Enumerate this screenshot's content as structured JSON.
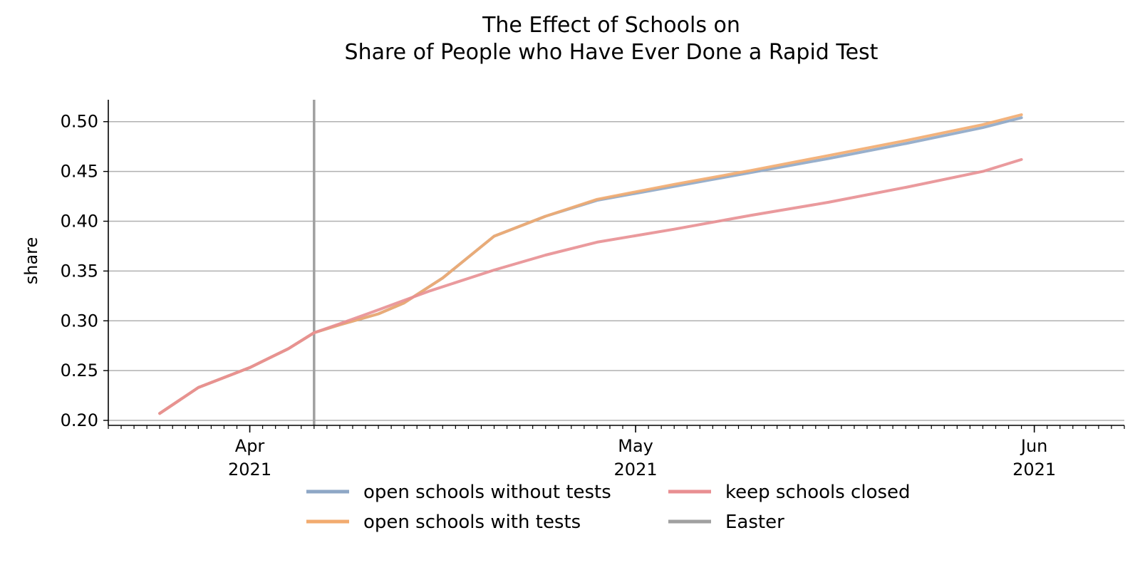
{
  "chart_data": {
    "type": "line",
    "title_lines": [
      "The Effect of Schools on",
      "Share of People who Have Ever Done a Rapid Test"
    ],
    "xlabel": "",
    "ylabel": "share",
    "xlim": [
      "2021-03-21",
      "2021-06-08"
    ],
    "ylim": [
      0.195,
      0.522
    ],
    "grid": "horizontal",
    "legend_placement": "bottom-center",
    "y_ticks": [
      0.2,
      0.25,
      0.3,
      0.35,
      0.4,
      0.45,
      0.5
    ],
    "y_tick_labels": [
      "0.20",
      "0.25",
      "0.30",
      "0.35",
      "0.40",
      "0.45",
      "0.50"
    ],
    "x_ticks": [
      {
        "date": "2021-04-01",
        "label1": "Apr",
        "label2": "2021"
      },
      {
        "date": "2021-05-01",
        "label1": "May",
        "label2": "2021"
      },
      {
        "date": "2021-06-01",
        "label1": "Jun",
        "label2": "2021"
      }
    ],
    "vline": {
      "date": "2021-04-06",
      "name": "Easter",
      "color": "#a0a0a0"
    },
    "series": [
      {
        "name": "open schools without tests",
        "color": "#8ea7c6",
        "points": [
          [
            "2021-03-25",
            0.207
          ],
          [
            "2021-03-28",
            0.233
          ],
          [
            "2021-04-01",
            0.253
          ],
          [
            "2021-04-04",
            0.272
          ],
          [
            "2021-04-06",
            0.288
          ],
          [
            "2021-04-08",
            0.296
          ],
          [
            "2021-04-11",
            0.307
          ],
          [
            "2021-04-13",
            0.318
          ],
          [
            "2021-04-16",
            0.343
          ],
          [
            "2021-04-20",
            0.385
          ],
          [
            "2021-04-24",
            0.405
          ],
          [
            "2021-04-28",
            0.421
          ],
          [
            "2021-05-04",
            0.435
          ],
          [
            "2021-05-10",
            0.449
          ],
          [
            "2021-05-16",
            0.463
          ],
          [
            "2021-05-22",
            0.478
          ],
          [
            "2021-05-28",
            0.494
          ],
          [
            "2021-05-31",
            0.504
          ]
        ]
      },
      {
        "name": "open schools with tests",
        "color": "#f2ab6f",
        "points": [
          [
            "2021-03-25",
            0.207
          ],
          [
            "2021-03-28",
            0.233
          ],
          [
            "2021-04-01",
            0.253
          ],
          [
            "2021-04-04",
            0.272
          ],
          [
            "2021-04-06",
            0.288
          ],
          [
            "2021-04-08",
            0.296
          ],
          [
            "2021-04-11",
            0.307
          ],
          [
            "2021-04-13",
            0.318
          ],
          [
            "2021-04-16",
            0.343
          ],
          [
            "2021-04-20",
            0.385
          ],
          [
            "2021-04-24",
            0.405
          ],
          [
            "2021-04-28",
            0.422
          ],
          [
            "2021-05-04",
            0.437
          ],
          [
            "2021-05-10",
            0.451
          ],
          [
            "2021-05-16",
            0.466
          ],
          [
            "2021-05-22",
            0.481
          ],
          [
            "2021-05-28",
            0.497
          ],
          [
            "2021-05-31",
            0.507
          ]
        ]
      },
      {
        "name": "keep schools closed",
        "color": "#e88f92",
        "points": [
          [
            "2021-03-25",
            0.207
          ],
          [
            "2021-03-28",
            0.233
          ],
          [
            "2021-04-01",
            0.253
          ],
          [
            "2021-04-04",
            0.272
          ],
          [
            "2021-04-06",
            0.288
          ],
          [
            "2021-04-08",
            0.297
          ],
          [
            "2021-04-11",
            0.311
          ],
          [
            "2021-04-15",
            0.33
          ],
          [
            "2021-04-20",
            0.351
          ],
          [
            "2021-04-24",
            0.366
          ],
          [
            "2021-04-28",
            0.379
          ],
          [
            "2021-05-04",
            0.392
          ],
          [
            "2021-05-10",
            0.406
          ],
          [
            "2021-05-16",
            0.419
          ],
          [
            "2021-05-22",
            0.434
          ],
          [
            "2021-05-28",
            0.45
          ],
          [
            "2021-05-31",
            0.462
          ]
        ]
      }
    ],
    "legend": [
      {
        "name": "open schools without tests",
        "color": "#8ea7c6"
      },
      {
        "name": "open schools with tests",
        "color": "#f2ab6f"
      },
      {
        "name": "keep schools closed",
        "color": "#e88f92"
      },
      {
        "name": "Easter",
        "color": "#a0a0a0"
      }
    ]
  }
}
